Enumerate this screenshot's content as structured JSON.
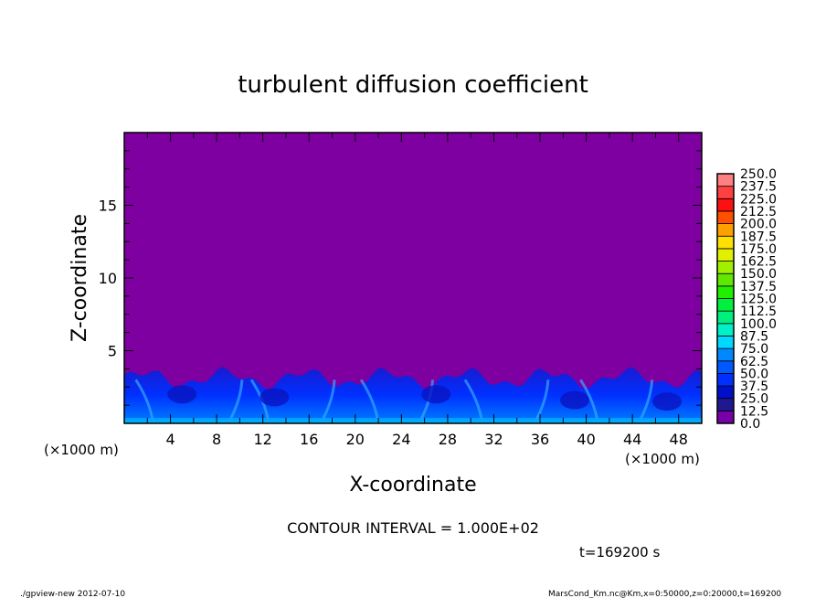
{
  "chart_data": {
    "type": "heatmap",
    "title": "turbulent diffusion coefficient",
    "xlabel": "X-coordinate",
    "ylabel": "Z-coordinate",
    "x_unit": "(×1000 m)",
    "x_unit_right": "(×1000 m)",
    "xlim": [
      0,
      50
    ],
    "ylim": [
      0,
      20
    ],
    "x_ticks": [
      4,
      8,
      12,
      16,
      20,
      24,
      28,
      32,
      36,
      40,
      44,
      48
    ],
    "y_ticks": [
      5,
      10,
      15
    ],
    "colorbar": {
      "levels": [
        "0.0",
        "12.5",
        "25.0",
        "37.5",
        "50.0",
        "62.5",
        "75.0",
        "87.5",
        "100.0",
        "112.5",
        "125.0",
        "137.5",
        "150.0",
        "162.5",
        "175.0",
        "187.5",
        "200.0",
        "212.5",
        "225.0",
        "237.5",
        "250.0"
      ],
      "colors": [
        "#7800a8",
        "#201890",
        "#0010c8",
        "#0030ff",
        "#0058ff",
        "#0088ff",
        "#00d8ff",
        "#00f0c8",
        "#00f080",
        "#00f040",
        "#20f000",
        "#60e800",
        "#a0f000",
        "#e0f000",
        "#ffe000",
        "#ffa000",
        "#ff5000",
        "#ff1010",
        "#ff4040",
        "#ff8080"
      ]
    },
    "background_color": "#7e00a0",
    "turbulent_layer_top_z": 3.5
  },
  "contour_interval": "CONTOUR INTERVAL = 1.000E+02",
  "time_label": "t=169200 s",
  "footer_left": "./gpview-new   2012-07-10",
  "footer_right": "MarsCond_Km.nc@Km,x=0:50000,z=0:20000,t=169200"
}
